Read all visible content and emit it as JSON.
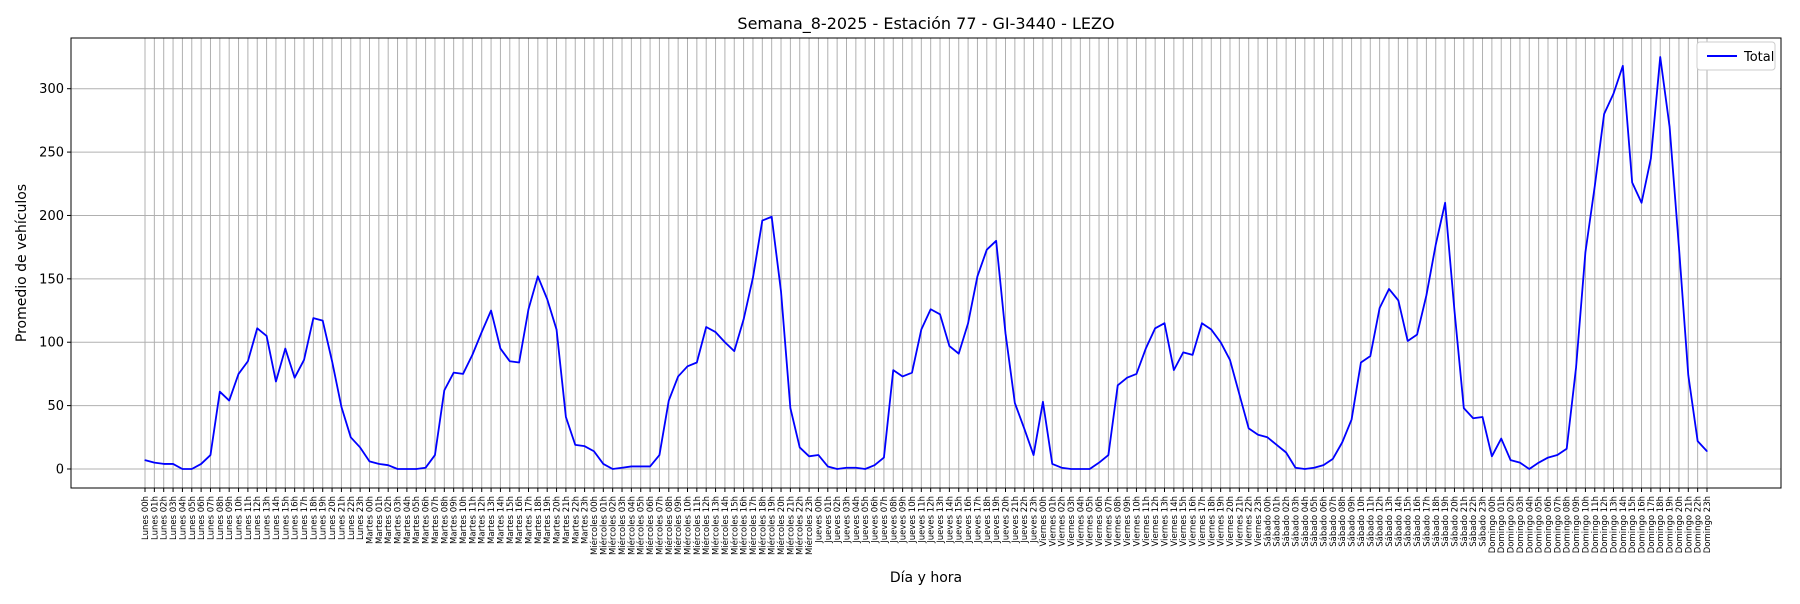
{
  "chart_data": {
    "type": "line",
    "title": "Semana_8-2025 - Estación 77 - GI-3440  - LEZO",
    "xlabel": "Día y hora",
    "ylabel": "Promedio de vehículos",
    "ylim": [
      -15,
      340
    ],
    "yticks": [
      0,
      50,
      100,
      150,
      200,
      250,
      300
    ],
    "grid": true,
    "legend_position": "top-right",
    "days": [
      "Lunes",
      "Martes",
      "Miércoles",
      "Jueves",
      "Viernes",
      "Sábado",
      "Domingo"
    ],
    "hours": [
      "00h",
      "01h",
      "02h",
      "03h",
      "04h",
      "05h",
      "06h",
      "07h",
      "08h",
      "09h",
      "10h",
      "11h",
      "12h",
      "13h",
      "14h",
      "15h",
      "16h",
      "17h",
      "18h",
      "19h",
      "20h",
      "21h",
      "22h",
      "23h"
    ],
    "series": [
      {
        "name": "Total",
        "color": "#0000ff",
        "values": [
          7,
          5,
          4,
          4,
          0,
          0,
          4,
          11,
          61,
          54,
          75,
          85,
          111,
          105,
          69,
          95,
          72,
          86,
          119,
          117,
          85,
          49,
          25,
          17,
          6,
          4,
          3,
          0,
          0,
          0,
          1,
          11,
          62,
          76,
          75,
          90,
          108,
          125,
          95,
          85,
          84,
          126,
          152,
          134,
          110,
          41,
          19,
          18,
          14,
          4,
          0,
          1,
          2,
          2,
          2,
          11,
          54,
          73,
          81,
          84,
          112,
          108,
          100,
          93,
          118,
          151,
          196,
          199,
          140,
          48,
          17,
          10,
          11,
          2,
          0,
          1,
          1,
          0,
          3,
          9,
          78,
          73,
          76,
          110,
          126,
          122,
          97,
          91,
          115,
          152,
          173,
          180,
          107,
          52,
          32,
          11,
          53,
          4,
          1,
          0,
          0,
          0,
          5,
          11,
          66,
          72,
          75,
          95,
          111,
          115,
          78,
          92,
          90,
          115,
          110,
          100,
          86,
          59,
          32,
          27,
          25,
          19,
          13,
          1,
          0,
          1,
          3,
          8,
          21,
          39,
          84,
          89,
          127,
          142,
          133,
          101,
          106,
          137,
          177,
          210,
          125,
          48,
          40,
          41,
          10,
          24,
          7,
          5,
          0,
          5,
          9,
          11,
          16,
          80,
          171,
          223,
          280,
          296,
          318,
          226,
          210,
          245,
          325,
          270,
          175,
          74,
          22,
          14
        ]
      }
    ]
  }
}
